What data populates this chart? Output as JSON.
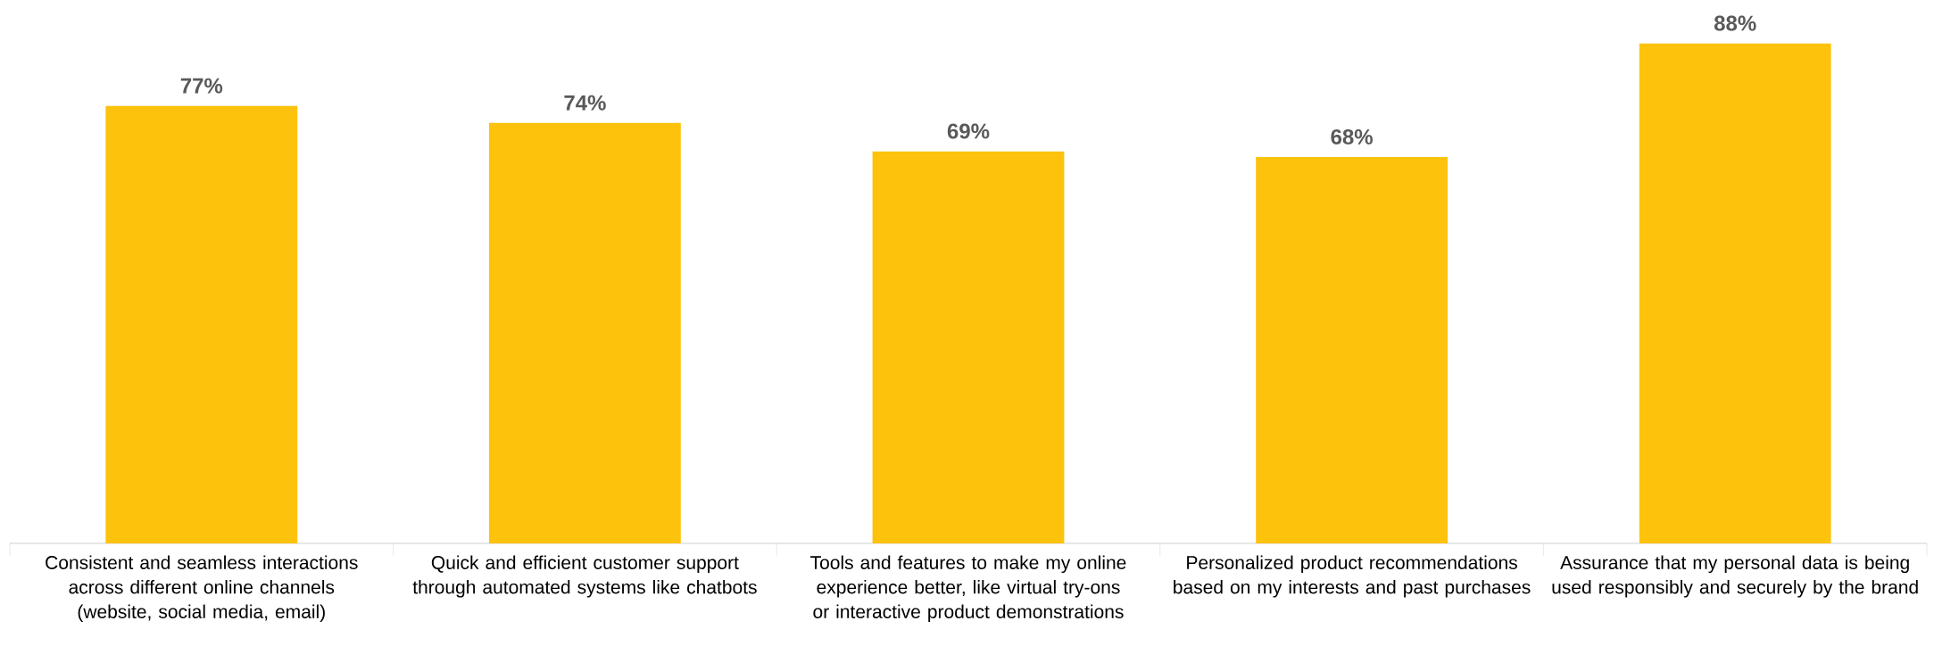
{
  "chart_data": {
    "type": "bar",
    "categories": [
      "Consistent and seamless interactions across different online channels (website, social media, email)",
      "Quick and efficient customer support through automated systems like chatbots",
      "Tools and features to make my online experience better, like virtual try-ons or interactive product demonstrations",
      "Personalized product recommendations based on my interests and past purchases",
      "Assurance that my personal data is being used responsibly and securely by the brand"
    ],
    "values": [
      77,
      74,
      69,
      68,
      88
    ],
    "value_labels": [
      "77%",
      "74%",
      "69%",
      "68%",
      "88%"
    ],
    "color": "#fdc20b",
    "grid": false
  }
}
